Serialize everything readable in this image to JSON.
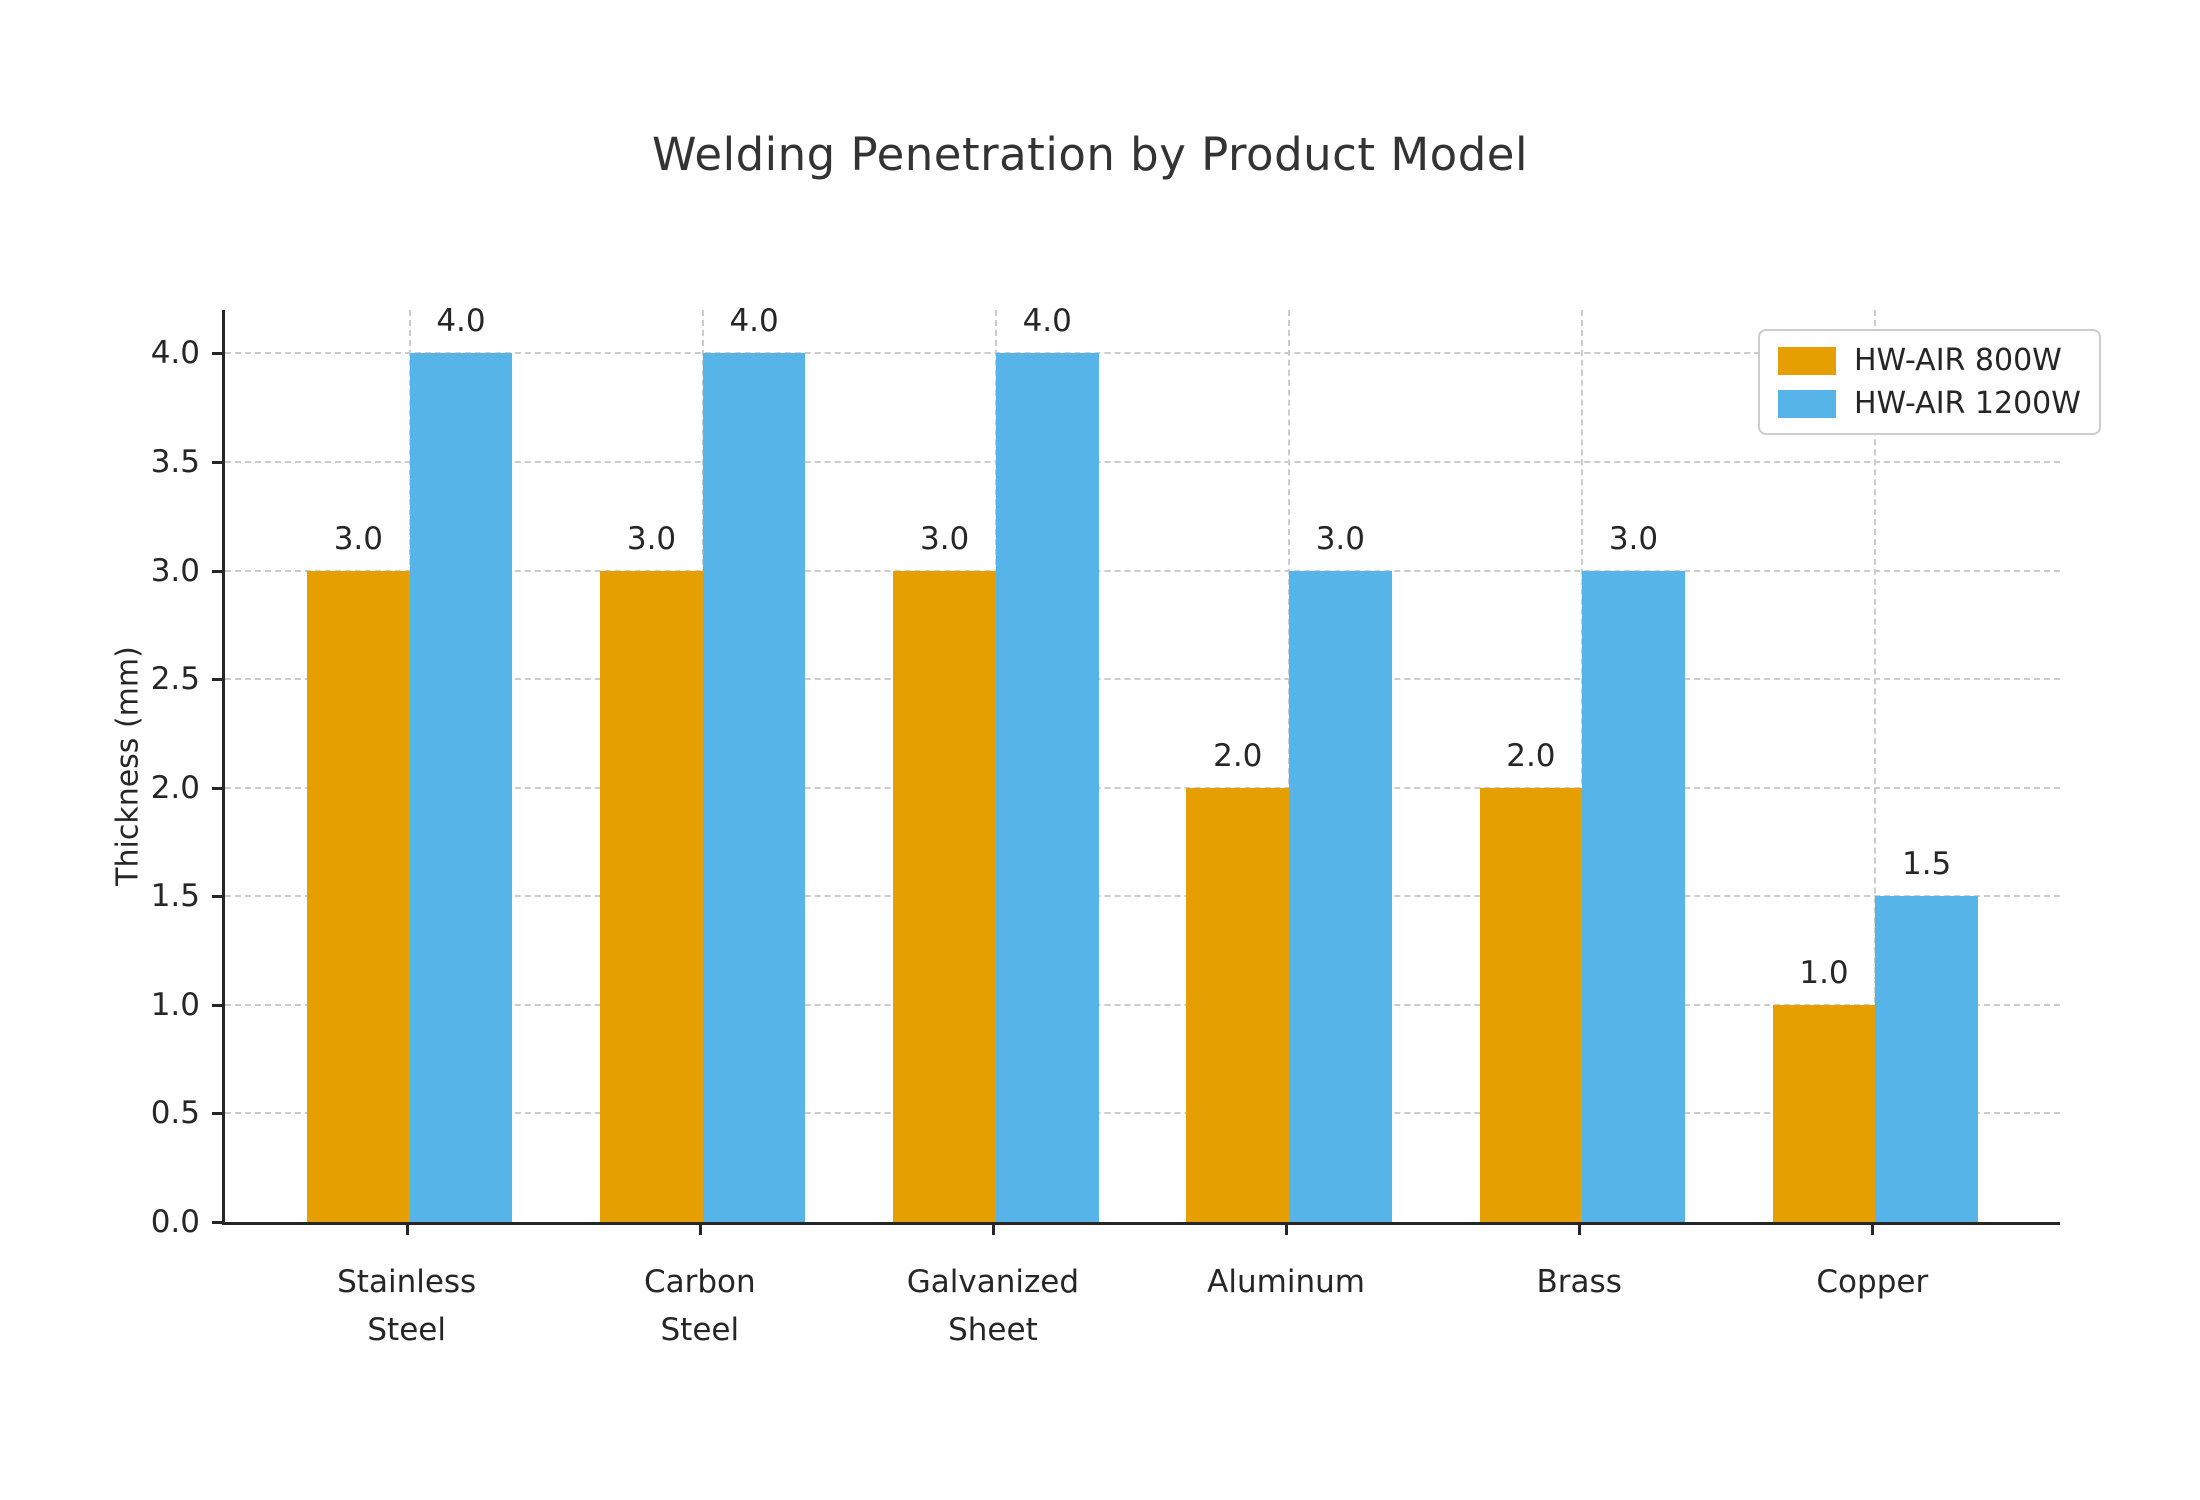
{
  "chart_data": {
    "type": "bar",
    "title": "Welding Penetration by Product Model",
    "ylabel": "Thickness (mm)",
    "xlabel": "",
    "categories": [
      "Stainless\nSteel",
      "Carbon\nSteel",
      "Galvanized\nSheet",
      "Aluminum",
      "Brass",
      "Copper"
    ],
    "series": [
      {
        "name": "HW-AIR 800W",
        "color": "#E69F00",
        "values": [
          3.0,
          3.0,
          3.0,
          2.0,
          2.0,
          1.0
        ]
      },
      {
        "name": "HW-AIR 1200W",
        "color": "#56B4E9",
        "values": [
          4.0,
          4.0,
          4.0,
          3.0,
          3.0,
          1.5
        ]
      }
    ],
    "yticks": [
      0.0,
      0.5,
      1.0,
      1.5,
      2.0,
      2.5,
      3.0,
      3.5,
      4.0
    ],
    "ylim": [
      0,
      4.2
    ],
    "grid": true,
    "grid_style": "dashed",
    "legend_position": "upper right",
    "value_labels": true,
    "value_label_format": ".1f",
    "colors": {
      "axis": "#262626",
      "grid": "#cccccc",
      "title": "#333333"
    }
  }
}
